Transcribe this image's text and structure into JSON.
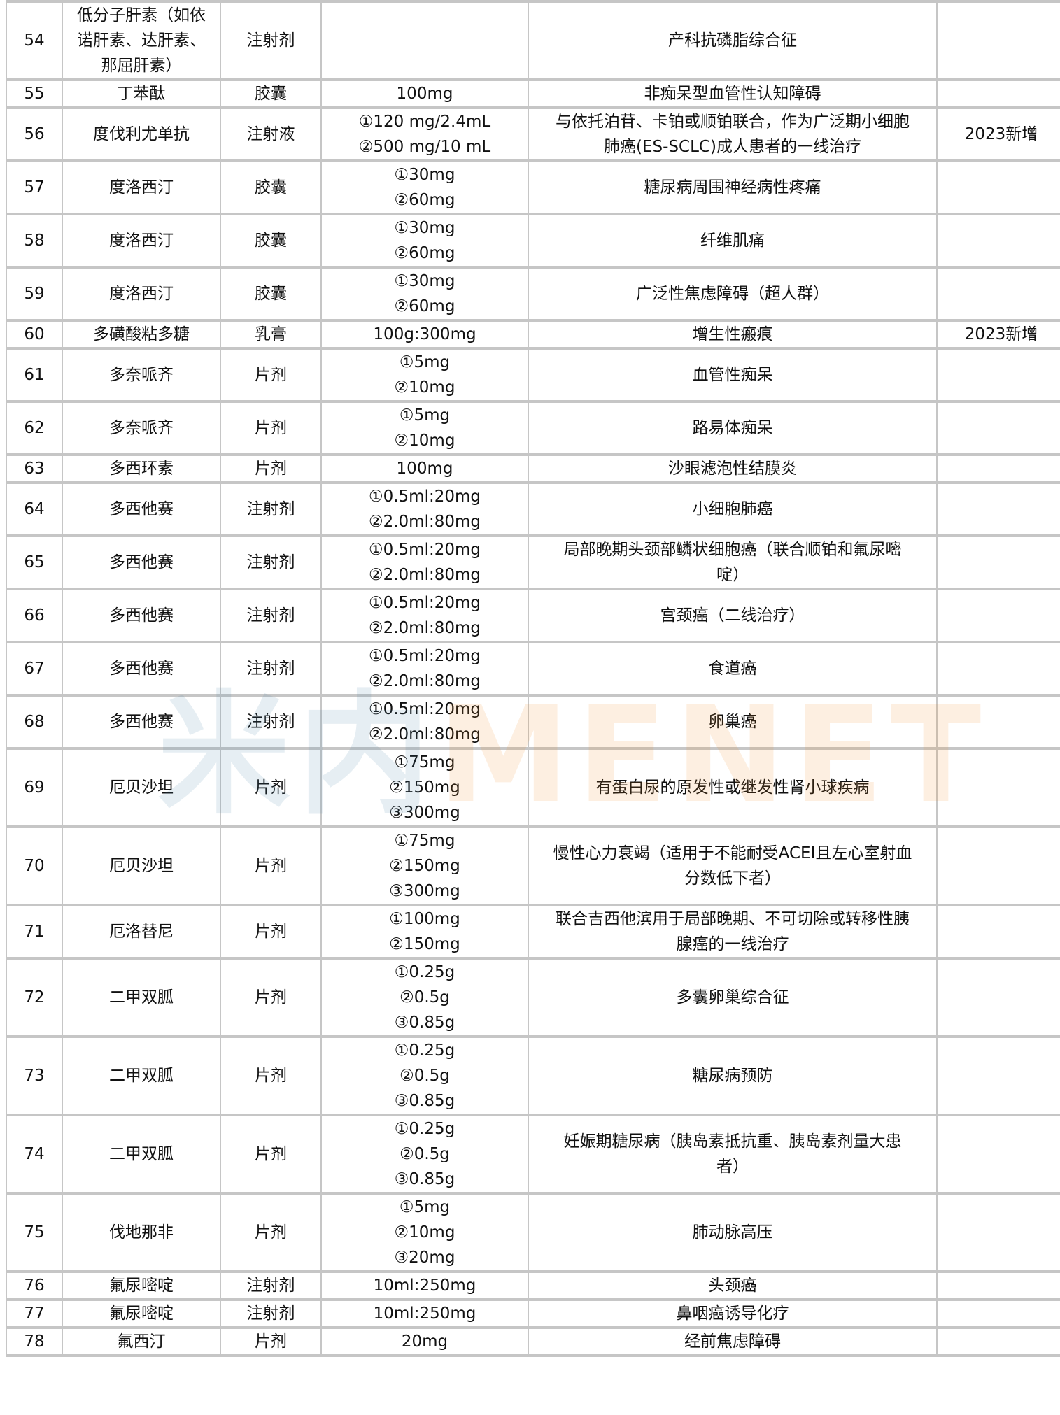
{
  "watermark": {
    "cn": "米内",
    "en": "MENET"
  },
  "rows": [
    {
      "no": "54",
      "drug": [
        "低分子肝素（如依",
        "诺肝素、达肝素、",
        "那屈肝素）"
      ],
      "form": "注射剂",
      "spec": [],
      "indication": [
        "产科抗磷脂综合征"
      ],
      "note": ""
    },
    {
      "no": "55",
      "drug": [
        "丁苯酞"
      ],
      "form": "胶囊",
      "spec": [
        "100mg"
      ],
      "indication": [
        "非痴呆型血管性认知障碍"
      ],
      "note": ""
    },
    {
      "no": "56",
      "drug": [
        "度伐利尤单抗"
      ],
      "form": "注射液",
      "spec": [
        "①120 mg/2.4mL",
        "②500 mg/10 mL"
      ],
      "indication": [
        "与依托泊苷、卡铂或顺铂联合，作为广泛期小细胞",
        "肺癌(ES-SCLC)成人患者的一线治疗"
      ],
      "note": "2023新增"
    },
    {
      "no": "57",
      "drug": [
        "度洛西汀"
      ],
      "form": "胶囊",
      "spec": [
        "①30mg",
        "②60mg"
      ],
      "indication": [
        "糖尿病周围神经病性疼痛"
      ],
      "note": ""
    },
    {
      "no": "58",
      "drug": [
        "度洛西汀"
      ],
      "form": "胶囊",
      "spec": [
        "①30mg",
        "②60mg"
      ],
      "indication": [
        "纤维肌痛"
      ],
      "note": ""
    },
    {
      "no": "59",
      "drug": [
        "度洛西汀"
      ],
      "form": "胶囊",
      "spec": [
        "①30mg",
        "②60mg"
      ],
      "indication": [
        "广泛性焦虑障碍（超人群）"
      ],
      "note": ""
    },
    {
      "no": "60",
      "drug": [
        "多磺酸粘多糖"
      ],
      "form": "乳膏",
      "spec": [
        "100g:300mg"
      ],
      "indication": [
        "增生性瘢痕"
      ],
      "note": "2023新增"
    },
    {
      "no": "61",
      "drug": [
        "多奈哌齐"
      ],
      "form": "片剂",
      "spec": [
        "①5mg",
        "②10mg"
      ],
      "indication": [
        "血管性痴呆"
      ],
      "note": ""
    },
    {
      "no": "62",
      "drug": [
        "多奈哌齐"
      ],
      "form": "片剂",
      "spec": [
        "①5mg",
        "②10mg"
      ],
      "indication": [
        "路易体痴呆"
      ],
      "note": ""
    },
    {
      "no": "63",
      "drug": [
        "多西环素"
      ],
      "form": "片剂",
      "spec": [
        "100mg"
      ],
      "indication": [
        "沙眼滤泡性结膜炎"
      ],
      "note": ""
    },
    {
      "no": "64",
      "drug": [
        "多西他赛"
      ],
      "form": "注射剂",
      "spec": [
        "①0.5ml:20mg",
        "②2.0ml:80mg"
      ],
      "indication": [
        "小细胞肺癌"
      ],
      "note": ""
    },
    {
      "no": "65",
      "drug": [
        "多西他赛"
      ],
      "form": "注射剂",
      "spec": [
        "①0.5ml:20mg",
        "②2.0ml:80mg"
      ],
      "indication": [
        "局部晚期头颈部鳞状细胞癌（联合顺铂和氟尿嘧",
        "啶）"
      ],
      "note": ""
    },
    {
      "no": "66",
      "drug": [
        "多西他赛"
      ],
      "form": "注射剂",
      "spec": [
        "①0.5ml:20mg",
        "②2.0ml:80mg"
      ],
      "indication": [
        "宫颈癌（二线治疗）"
      ],
      "note": ""
    },
    {
      "no": "67",
      "drug": [
        "多西他赛"
      ],
      "form": "注射剂",
      "spec": [
        "①0.5ml:20mg",
        "②2.0ml:80mg"
      ],
      "indication": [
        "食道癌"
      ],
      "note": ""
    },
    {
      "no": "68",
      "drug": [
        "多西他赛"
      ],
      "form": "注射剂",
      "spec": [
        "①0.5ml:20mg",
        "②2.0ml:80mg"
      ],
      "indication": [
        "卵巢癌"
      ],
      "note": ""
    },
    {
      "no": "69",
      "drug": [
        "厄贝沙坦"
      ],
      "form": "片剂",
      "spec": [
        "①75mg",
        "②150mg",
        "③300mg"
      ],
      "indication": [
        "有蛋白尿的原发性或继发性肾小球疾病"
      ],
      "note": ""
    },
    {
      "no": "70",
      "drug": [
        "厄贝沙坦"
      ],
      "form": "片剂",
      "spec": [
        "①75mg",
        "②150mg",
        "③300mg"
      ],
      "indication": [
        "慢性心力衰竭（适用于不能耐受ACEI且左心室射血",
        "分数低下者）"
      ],
      "note": ""
    },
    {
      "no": "71",
      "drug": [
        "厄洛替尼"
      ],
      "form": "片剂",
      "spec": [
        "①100mg",
        "②150mg"
      ],
      "indication": [
        "联合吉西他滨用于局部晚期、不可切除或转移性胰",
        "腺癌的一线治疗"
      ],
      "note": ""
    },
    {
      "no": "72",
      "drug": [
        "二甲双胍"
      ],
      "form": "片剂",
      "spec": [
        "①0.25g",
        "②0.5g",
        "③0.85g"
      ],
      "indication": [
        "多囊卵巢综合征"
      ],
      "note": ""
    },
    {
      "no": "73",
      "drug": [
        "二甲双胍"
      ],
      "form": "片剂",
      "spec": [
        "①0.25g",
        "②0.5g",
        "③0.85g"
      ],
      "indication": [
        "糖尿病预防"
      ],
      "note": ""
    },
    {
      "no": "74",
      "drug": [
        "二甲双胍"
      ],
      "form": "片剂",
      "spec": [
        "①0.25g",
        "②0.5g",
        "③0.85g"
      ],
      "indication": [
        "妊娠期糖尿病（胰岛素抵抗重、胰岛素剂量大患",
        "者）"
      ],
      "note": ""
    },
    {
      "no": "75",
      "drug": [
        "伐地那非"
      ],
      "form": "片剂",
      "spec": [
        "①5mg",
        "②10mg",
        "③20mg"
      ],
      "indication": [
        "肺动脉高压"
      ],
      "note": ""
    },
    {
      "no": "76",
      "drug": [
        "氟尿嘧啶"
      ],
      "form": "注射剂",
      "spec": [
        "10ml:250mg"
      ],
      "indication": [
        "头颈癌"
      ],
      "note": ""
    },
    {
      "no": "77",
      "drug": [
        "氟尿嘧啶"
      ],
      "form": "注射剂",
      "spec": [
        "10ml:250mg"
      ],
      "indication": [
        "鼻咽癌诱导化疗"
      ],
      "note": ""
    },
    {
      "no": "78",
      "drug": [
        "氟西汀"
      ],
      "form": "片剂",
      "spec": [
        "20mg"
      ],
      "indication": [
        "经前焦虑障碍"
      ],
      "note": ""
    }
  ]
}
